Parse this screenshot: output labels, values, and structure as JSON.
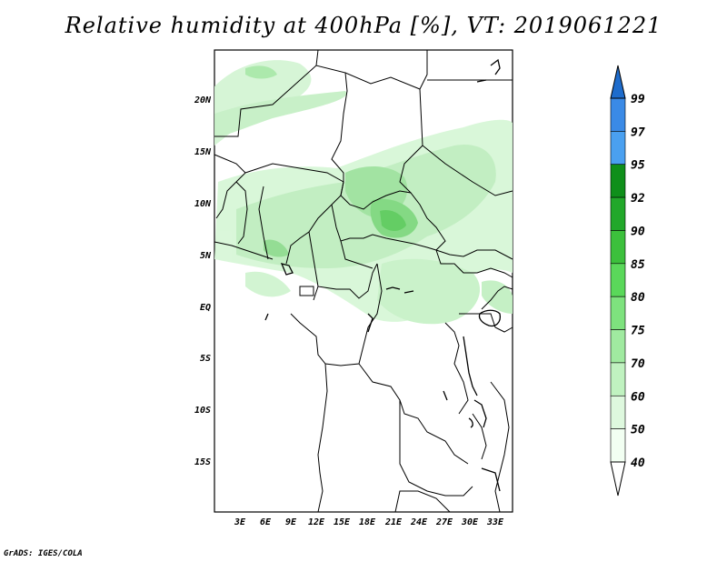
{
  "title": "Relative humidity at 400hPa [%], VT: 2019061221",
  "credit": "GrADS: IGES/COLA",
  "map": {
    "lat_labels": [
      "20N",
      "15N",
      "10N",
      "5N",
      "EQ",
      "5S",
      "10S",
      "15S"
    ],
    "lon_labels": [
      "3E",
      "6E",
      "9E",
      "12E",
      "15E",
      "18E",
      "21E",
      "24E",
      "27E",
      "30E",
      "33E"
    ],
    "land_color": "#ffffff",
    "boundary_color": "#000000"
  },
  "colorbar": {
    "levels": [
      "99",
      "97",
      "95",
      "92",
      "90",
      "85",
      "80",
      "75",
      "70",
      "60",
      "50",
      "40"
    ],
    "colors": [
      "#1e6ccc",
      "#3a8ae6",
      "#4aa0f0",
      "#0f8f1a",
      "#22a82a",
      "#3cc03c",
      "#5ad85a",
      "#7ee27e",
      "#a0eaa0",
      "#c0f2c0",
      "#def8de",
      "#f2fff2",
      "#ffffff"
    ]
  }
}
